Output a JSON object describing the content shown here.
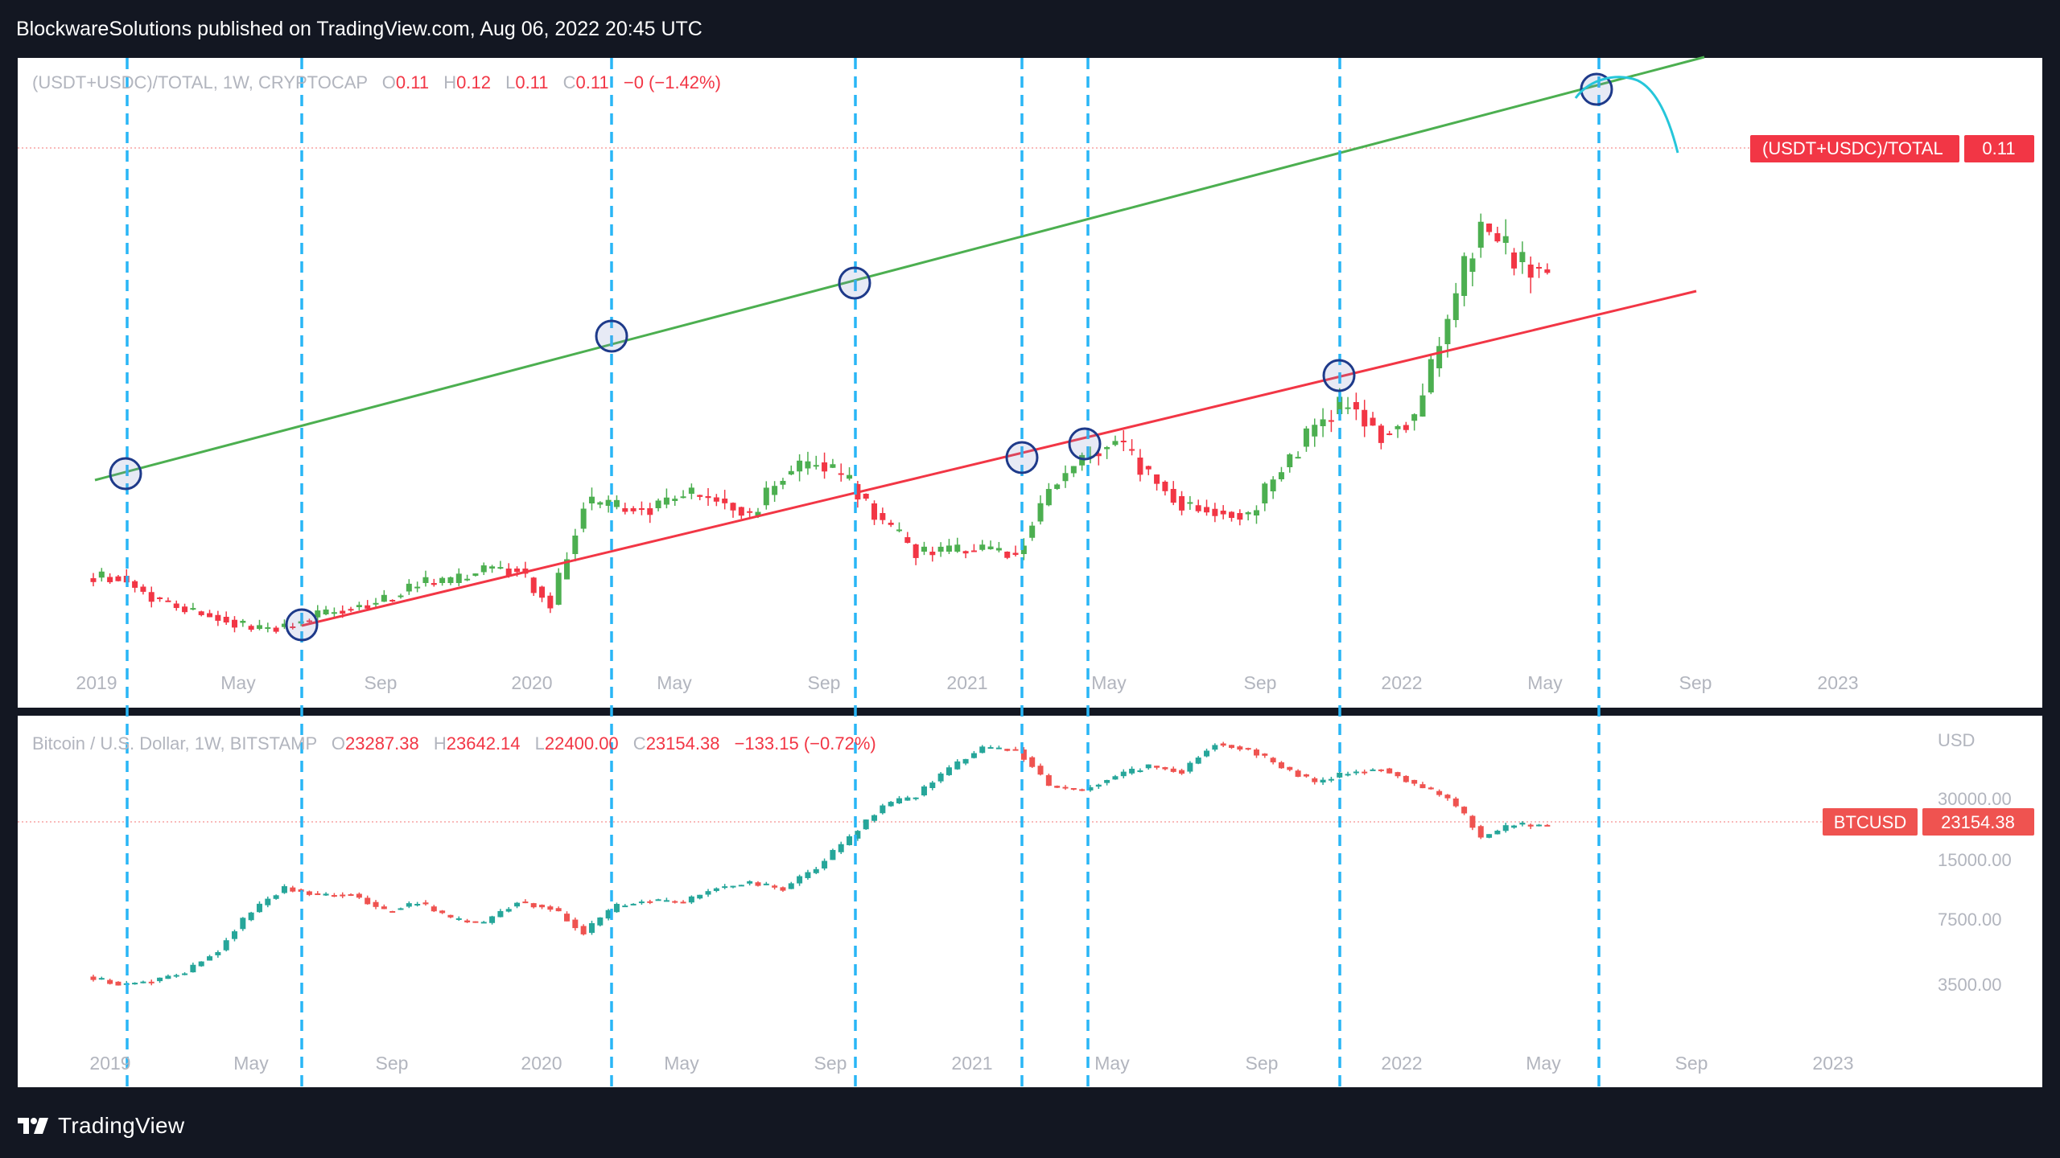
{
  "header": {
    "text": "BlockwareSolutions published on TradingView.com, Aug 06, 2022 20:45 UTC"
  },
  "footer": {
    "brand": "TradingView"
  },
  "top_panel": {
    "symbol": "(USDT+USDC)/TOTAL, 1W, CRYPTOCAP",
    "ohlc": {
      "o_label": "O",
      "o": "0.11",
      "h_label": "H",
      "h": "0.12",
      "l_label": "L",
      "l": "0.11",
      "c_label": "C",
      "c": "0.11",
      "change": "−0 (−1.42%)"
    },
    "price_tag_label": "(USDT+USDC)/TOTAL",
    "price_tag_value": "0.11",
    "x_ticks": [
      "2019",
      "May",
      "Sep",
      "2020",
      "May",
      "Sep",
      "2021",
      "May",
      "Sep",
      "2022",
      "May",
      "Sep",
      "2023"
    ]
  },
  "bottom_panel": {
    "symbol": "Bitcoin / U.S. Dollar, 1W, BITSTAMP",
    "ohlc": {
      "o_label": "O",
      "o": "23287.38",
      "h_label": "H",
      "h": "23642.14",
      "l_label": "L",
      "l": "22400.00",
      "c_label": "C",
      "c": "23154.38",
      "change": "−133.15 (−0.72%)"
    },
    "currency": "USD",
    "y_ticks": [
      "30000.00",
      "15000.00",
      "7500.00",
      "3500.00"
    ],
    "price_tag_label": "BTCUSD",
    "price_tag_value": "23154.38",
    "x_ticks": [
      "2019",
      "May",
      "Sep",
      "2020",
      "May",
      "Sep",
      "2021",
      "May",
      "Sep",
      "2022",
      "May",
      "Sep",
      "2023"
    ]
  },
  "colors": {
    "up": "#26a69a",
    "down": "#ef5350",
    "up_top": "#4caf50",
    "down_top": "#f23645",
    "channel_upper": "#4caf50",
    "channel_lower": "#f23645",
    "vline": "#29b6f6",
    "circle": "#1e3a8a",
    "arc": "#26c6da"
  },
  "chart_data": [
    {
      "type": "candlestick",
      "title": "(USDT+USDC)/TOTAL, 1W, CRYPTOCAP",
      "x_range": [
        "2018-12",
        "2023-02"
      ],
      "approx_weekly_close": [
        [
          "2018-12",
          0.0465
        ],
        [
          "2019-01",
          0.047
        ],
        [
          "2019-02",
          0.0425
        ],
        [
          "2019-03",
          0.04
        ],
        [
          "2019-04",
          0.0385
        ],
        [
          "2019-05",
          0.036
        ],
        [
          "2019-06",
          0.0365
        ],
        [
          "2019-07",
          0.039
        ],
        [
          "2019-08",
          0.0405
        ],
        [
          "2019-09",
          0.042
        ],
        [
          "2019-10",
          0.0455
        ],
        [
          "2019-11",
          0.0455
        ],
        [
          "2019-12",
          0.0485
        ],
        [
          "2020-01",
          0.0485
        ],
        [
          "2020-02",
          0.041
        ],
        [
          "2020-03",
          0.062
        ],
        [
          "2020-04",
          0.061
        ],
        [
          "2020-05",
          0.061
        ],
        [
          "2020-06",
          0.064
        ],
        [
          "2020-07",
          0.063
        ],
        [
          "2020-08",
          0.0595
        ],
        [
          "2020-09",
          0.068
        ],
        [
          "2020-10",
          0.0705
        ],
        [
          "2020-11",
          0.066
        ],
        [
          "2020-12",
          0.058
        ],
        [
          "2021-01",
          0.052
        ],
        [
          "2021-02",
          0.052
        ],
        [
          "2021-03",
          0.0525
        ],
        [
          "2021-04",
          0.0515
        ],
        [
          "2021-05",
          0.065
        ],
        [
          "2021-06",
          0.0715
        ],
        [
          "2021-07",
          0.075
        ],
        [
          "2021-08",
          0.068
        ],
        [
          "2021-09",
          0.062
        ],
        [
          "2021-10",
          0.0605
        ],
        [
          "2021-11",
          0.0595
        ],
        [
          "2021-12",
          0.0695
        ],
        [
          "2022-01",
          0.078
        ],
        [
          "2022-02",
          0.083
        ],
        [
          "2022-03",
          0.0765
        ],
        [
          "2022-04",
          0.08
        ],
        [
          "2022-05",
          0.1
        ],
        [
          "2022-06",
          0.12
        ],
        [
          "2022-07",
          0.112
        ],
        [
          "2022-08",
          0.11
        ]
      ],
      "last": 0.11,
      "annotations": [
        "ascending channel: upper trendline (green), lower trendline (red)",
        "dashed vertical lines at touch points",
        "circled touch points",
        "curved arc at top"
      ]
    },
    {
      "type": "candlestick",
      "title": "Bitcoin / U.S. Dollar, 1W, BITSTAMP",
      "y_scale": "log",
      "y_unit": "USD",
      "x_range": [
        "2018-12",
        "2023-02"
      ],
      "approx_weekly_close": [
        [
          "2018-12",
          3800
        ],
        [
          "2019-01",
          3500
        ],
        [
          "2019-02",
          3600
        ],
        [
          "2019-03",
          4000
        ],
        [
          "2019-04",
          5200
        ],
        [
          "2019-05",
          8200
        ],
        [
          "2019-06",
          11000
        ],
        [
          "2019-07",
          10000
        ],
        [
          "2019-08",
          10200
        ],
        [
          "2019-09",
          8300
        ],
        [
          "2019-10",
          9200
        ],
        [
          "2019-11",
          7500
        ],
        [
          "2019-12",
          7200
        ],
        [
          "2020-01",
          9300
        ],
        [
          "2020-02",
          8600
        ],
        [
          "2020-03",
          6400
        ],
        [
          "2020-04",
          8800
        ],
        [
          "2020-05",
          9500
        ],
        [
          "2020-06",
          9200
        ],
        [
          "2020-07",
          11000
        ],
        [
          "2020-08",
          11700
        ],
        [
          "2020-09",
          10800
        ],
        [
          "2020-10",
          13800
        ],
        [
          "2020-11",
          19700
        ],
        [
          "2020-12",
          29000
        ],
        [
          "2021-01",
          33000
        ],
        [
          "2021-02",
          45000
        ],
        [
          "2021-03",
          58000
        ],
        [
          "2021-04",
          57000
        ],
        [
          "2021-05",
          37000
        ],
        [
          "2021-06",
          35000
        ],
        [
          "2021-07",
          41500
        ],
        [
          "2021-08",
          47000
        ],
        [
          "2021-09",
          43800
        ],
        [
          "2021-10",
          61300
        ],
        [
          "2021-11",
          57000
        ],
        [
          "2021-12",
          46300
        ],
        [
          "2022-01",
          38500
        ],
        [
          "2022-02",
          43200
        ],
        [
          "2022-03",
          45500
        ],
        [
          "2022-04",
          37700
        ],
        [
          "2022-05",
          31800
        ],
        [
          "2022-06",
          19900
        ],
        [
          "2022-07",
          23300
        ],
        [
          "2022-08",
          23154.38
        ]
      ],
      "last": 23154.38
    }
  ]
}
